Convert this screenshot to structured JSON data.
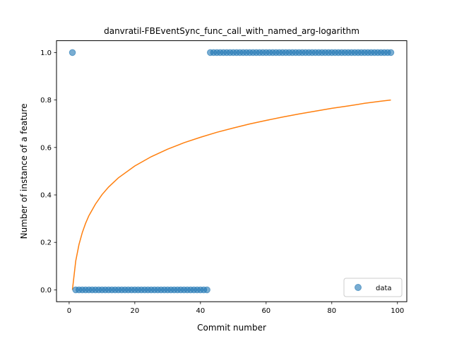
{
  "chart_data": {
    "type": "scatter",
    "title": "danvratil-FBEventSync_func_call_with_named_arg-logarithm",
    "xlabel": "Commit number",
    "ylabel": "Number of instance of a feature",
    "xlim": [
      -3.85,
      102.85
    ],
    "ylim": [
      -0.05,
      1.05
    ],
    "xticks": [
      0,
      20,
      40,
      60,
      80,
      100
    ],
    "xtick_labels": [
      "0",
      "20",
      "40",
      "60",
      "80",
      "100"
    ],
    "yticks": [
      0.0,
      0.2,
      0.4,
      0.6,
      0.8,
      1.0
    ],
    "ytick_labels": [
      "0.0",
      "0.2",
      "0.4",
      "0.6",
      "0.8",
      "1.0"
    ],
    "grid": false,
    "legend_position": "lower-right",
    "series": [
      {
        "name": "data",
        "kind": "scatter",
        "color": "#1f77b4",
        "x": [
          1,
          2,
          3,
          4,
          5,
          6,
          7,
          8,
          9,
          10,
          11,
          12,
          13,
          14,
          15,
          16,
          17,
          18,
          19,
          20,
          21,
          22,
          23,
          24,
          25,
          26,
          27,
          28,
          29,
          30,
          31,
          32,
          33,
          34,
          35,
          36,
          37,
          38,
          39,
          40,
          41,
          42,
          43,
          44,
          45,
          46,
          47,
          48,
          49,
          50,
          51,
          52,
          53,
          54,
          55,
          56,
          57,
          58,
          59,
          60,
          61,
          62,
          63,
          64,
          65,
          66,
          67,
          68,
          69,
          70,
          71,
          72,
          73,
          74,
          75,
          76,
          77,
          78,
          79,
          80,
          81,
          82,
          83,
          84,
          85,
          86,
          87,
          88,
          89,
          90,
          91,
          92,
          93,
          94,
          95,
          96,
          97,
          98
        ],
        "y": [
          1,
          0,
          0,
          0,
          0,
          0,
          0,
          0,
          0,
          0,
          0,
          0,
          0,
          0,
          0,
          0,
          0,
          0,
          0,
          0,
          0,
          0,
          0,
          0,
          0,
          0,
          0,
          0,
          0,
          0,
          0,
          0,
          0,
          0,
          0,
          0,
          0,
          0,
          0,
          0,
          0,
          0,
          1,
          1,
          1,
          1,
          1,
          1,
          1,
          1,
          1,
          1,
          1,
          1,
          1,
          1,
          1,
          1,
          1,
          1,
          1,
          1,
          1,
          1,
          1,
          1,
          1,
          1,
          1,
          1,
          1,
          1,
          1,
          1,
          1,
          1,
          1,
          1,
          1,
          1,
          1,
          1,
          1,
          1,
          1,
          1,
          1,
          1,
          1,
          1,
          1,
          1,
          1,
          1,
          1,
          1,
          1,
          1
        ]
      },
      {
        "name": "",
        "kind": "line",
        "color": "#ff7f0e",
        "x": [
          1,
          2,
          3,
          4,
          5,
          6,
          8,
          10,
          12,
          15,
          20,
          25,
          30,
          35,
          40,
          45,
          50,
          55,
          60,
          65,
          70,
          75,
          80,
          85,
          90,
          95,
          98
        ],
        "y": [
          0.0,
          0.121,
          0.191,
          0.241,
          0.28,
          0.312,
          0.361,
          0.401,
          0.433,
          0.472,
          0.522,
          0.561,
          0.593,
          0.62,
          0.643,
          0.664,
          0.682,
          0.699,
          0.714,
          0.728,
          0.741,
          0.753,
          0.765,
          0.775,
          0.786,
          0.795,
          0.8
        ]
      }
    ]
  }
}
